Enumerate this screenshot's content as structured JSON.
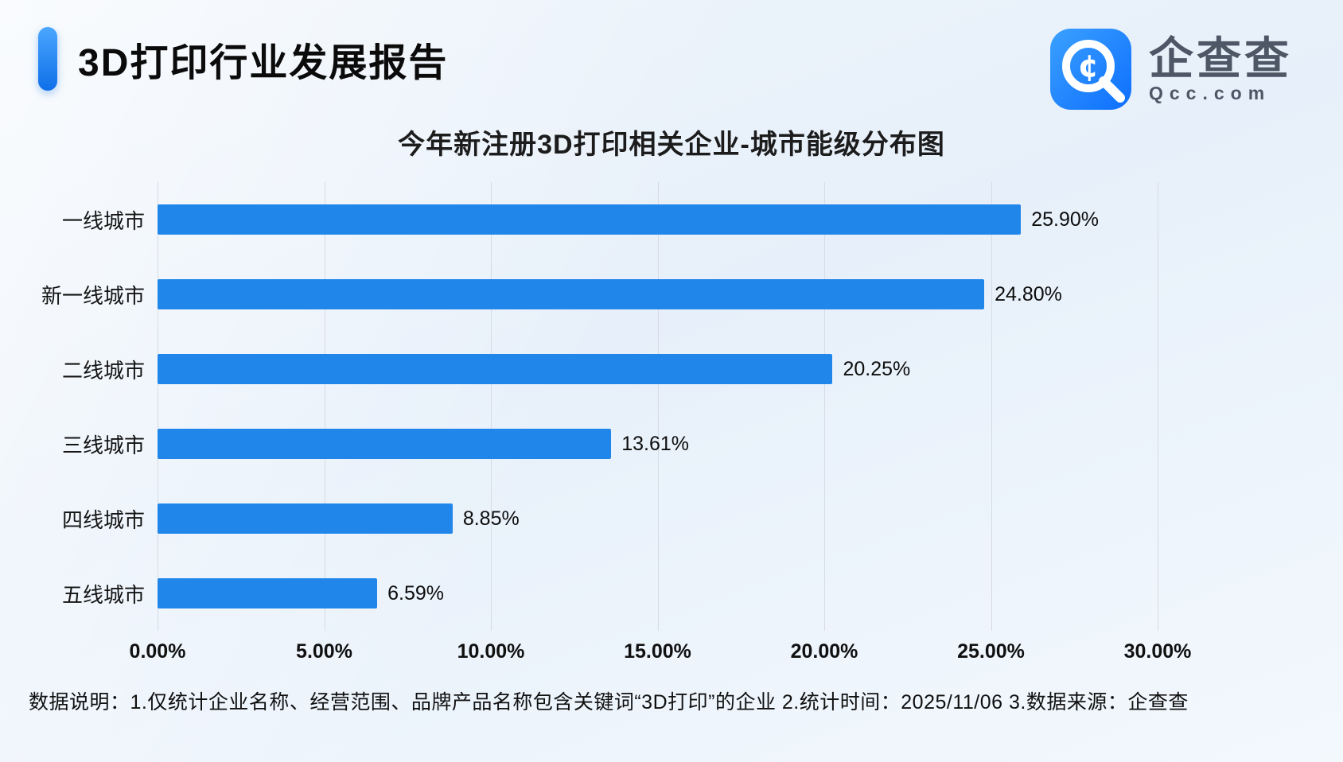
{
  "page": {
    "report_title": "3D打印行业发展报告",
    "brand": {
      "name": "企查查",
      "domain": "Qcc.com"
    },
    "footer_note": "数据说明：1.仅统计企业名称、经营范围、品牌产品名称包含关键词“3D打印”的企业  2.统计时间：2025/11/06   3.数据来源：企查查"
  },
  "colors": {
    "bar": "#2086ea",
    "accent": "#0f6fe8",
    "grid": "#d7dce3",
    "logo_gradient_start": "#3ba1ff",
    "logo_gradient_end": "#0d6efd"
  },
  "chart_data": {
    "type": "bar",
    "orientation": "horizontal",
    "title": "今年新注册3D打印相关企业-城市能级分布图",
    "categories": [
      "一线城市",
      "新一线城市",
      "二线城市",
      "三线城市",
      "四线城市",
      "五线城市"
    ],
    "values": [
      25.9,
      24.8,
      20.25,
      13.61,
      8.85,
      6.59
    ],
    "value_labels": [
      "25.90%",
      "24.80%",
      "20.25%",
      "13.61%",
      "8.85%",
      "6.59%"
    ],
    "xlim": [
      0,
      30
    ],
    "x_ticks": [
      "0.00%",
      "5.00%",
      "10.00%",
      "15.00%",
      "20.00%",
      "25.00%",
      "30.00%"
    ],
    "x_tick_values": [
      0,
      5,
      10,
      15,
      20,
      25,
      30
    ],
    "grid": true,
    "legend": false
  }
}
